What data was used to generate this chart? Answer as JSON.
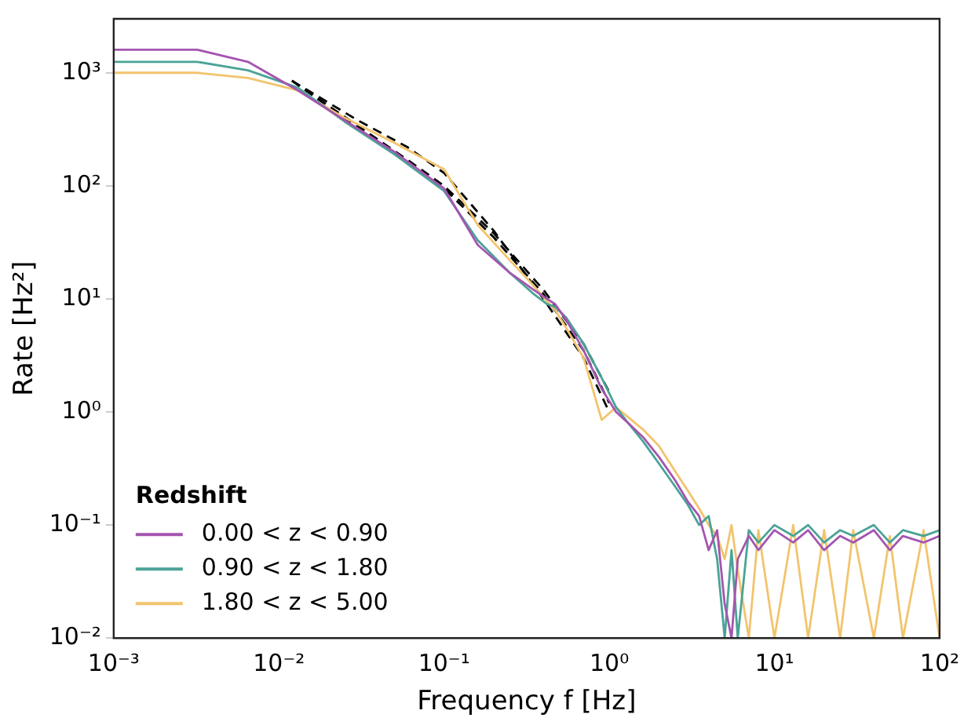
{
  "chart_data": {
    "type": "line",
    "xlabel": "Frequency f [Hz]",
    "ylabel": "Rate [Hz²]",
    "legend_title": "Redshift",
    "legend": "bottom left",
    "log": "xy",
    "grid": false,
    "marker": "none",
    "xlim": [
      0.001,
      100
    ],
    "ylim": [
      0.01,
      3000
    ],
    "xticks": [
      {
        "value": 0.001,
        "label": "10⁻³"
      },
      {
        "value": 0.01,
        "label": "10⁻²"
      },
      {
        "value": 0.1,
        "label": "10⁻¹"
      },
      {
        "value": 1,
        "label": "10⁰"
      },
      {
        "value": 10,
        "label": "10¹"
      },
      {
        "value": 100,
        "label": "10²"
      }
    ],
    "yticks": [
      {
        "value": 0.01,
        "label": "10⁻²"
      },
      {
        "value": 0.1,
        "label": "10⁻¹"
      },
      {
        "value": 1,
        "label": "10⁰"
      },
      {
        "value": 10,
        "label": "10¹"
      },
      {
        "value": 100,
        "label": "10²"
      },
      {
        "value": 1000,
        "label": "10³"
      }
    ],
    "x": [
      0.001,
      0.0032,
      0.0065,
      0.013,
      0.025,
      0.05,
      0.1,
      0.16,
      0.25,
      0.35,
      0.42,
      0.47,
      0.55,
      0.7,
      0.9,
      1.1,
      1.3,
      1.6,
      2,
      2.5,
      3,
      3.5,
      4,
      4.5,
      5,
      5.5,
      6,
      7,
      8,
      10,
      13,
      16,
      20,
      25,
      30,
      40,
      50,
      60,
      80,
      100
    ],
    "series": [
      {
        "name": "0.00 < z < 0.90",
        "color": "#a455b0",
        "line_style": "solid",
        "values": [
          1600,
          1600,
          1250,
          700,
          380,
          200,
          95,
          30,
          17,
          12,
          10,
          9,
          6.5,
          3.5,
          1.6,
          1,
          0.8,
          0.6,
          0.4,
          0.25,
          0.16,
          0.12,
          0.06,
          0.09,
          0.02,
          0.01,
          0.05,
          0.08,
          0.06,
          0.09,
          0.07,
          0.09,
          0.06,
          0.08,
          0.07,
          0.09,
          0.06,
          0.08,
          0.07,
          0.08
        ]
      },
      {
        "name": "0.90 < z < 1.80",
        "color": "#4aa396",
        "line_style": "solid",
        "values": [
          1250,
          1250,
          1050,
          740,
          370,
          190,
          90,
          33,
          17,
          11,
          9,
          8.5,
          6.8,
          4,
          2,
          1.1,
          0.8,
          0.55,
          0.35,
          0.22,
          0.15,
          0.1,
          0.12,
          0.05,
          0.01,
          0.06,
          0.01,
          0.09,
          0.07,
          0.1,
          0.08,
          0.1,
          0.07,
          0.09,
          0.08,
          0.1,
          0.07,
          0.09,
          0.08,
          0.09
        ]
      },
      {
        "name": "1.80 < z < 5.00",
        "color": "#f2c46d",
        "line_style": "solid",
        "values": [
          1000,
          1000,
          900,
          700,
          400,
          240,
          140,
          45,
          22,
          13,
          9.5,
          8,
          5.5,
          3,
          0.85,
          1.1,
          0.9,
          0.7,
          0.5,
          0.3,
          0.2,
          0.14,
          0.1,
          0.08,
          0.05,
          0.1,
          0.04,
          0.01,
          0.09,
          0.01,
          0.1,
          0.01,
          0.09,
          0.01,
          0.09,
          0.01,
          0.08,
          0.01,
          0.09,
          0.01
        ]
      },
      {
        "type": "line",
        "color": "#000000",
        "line_style": "dashed",
        "x": [
          0.012,
          0.03,
          0.06,
          0.1,
          0.2,
          0.4,
          0.7,
          1.0
        ],
        "values": [
          850,
          330,
          165,
          95,
          35,
          11,
          3.5,
          1.2
        ]
      },
      {
        "type": "line",
        "color": "#000000",
        "line_style": "dashed",
        "x": [
          0.012,
          0.03,
          0.06,
          0.1,
          0.2,
          0.4,
          0.7,
          1.0
        ],
        "values": [
          850,
          340,
          170,
          100,
          38,
          12,
          4,
          1.5
        ]
      },
      {
        "type": "line",
        "color": "#000000",
        "line_style": "dashed",
        "x": [
          0.012,
          0.03,
          0.06,
          0.1,
          0.2,
          0.4,
          0.7,
          1.0
        ],
        "values": [
          850,
          380,
          220,
          130,
          40,
          10,
          3,
          1.0
        ]
      }
    ]
  }
}
